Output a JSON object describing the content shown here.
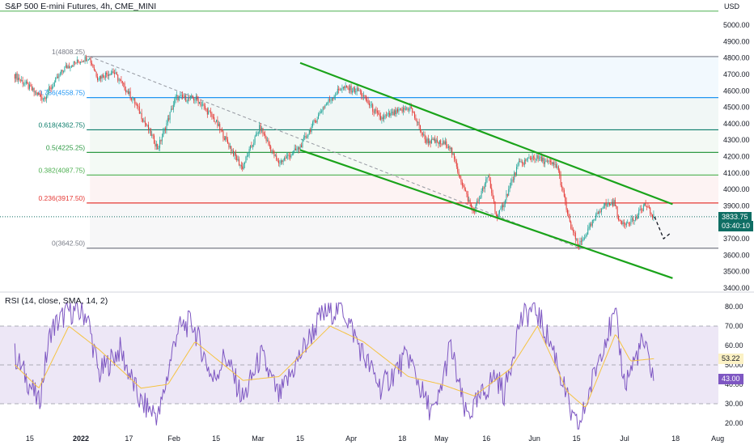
{
  "header": {
    "title": "S&P 500 E-mini Futures, 4h, CME_MINI",
    "currency": "USD"
  },
  "rsi_header": {
    "title": "RSI (14, close, SMA, 14, 2)"
  },
  "price_badge": {
    "price": "3833.75",
    "countdown": "03:40:10",
    "color": "#0f6e64"
  },
  "rsi_badges": {
    "sma": "53.22",
    "rsi": "43.00",
    "sma_color": "#fbf1c4",
    "rsi_color": "#7e57c2"
  },
  "colors": {
    "channel": "#1aa31a",
    "candle_up": "#26a69a",
    "candle_down": "#e53935",
    "rsi_line": "#7e57c2",
    "rsi_sma": "#f5c342",
    "rsi_band": "#ede7f6"
  },
  "chart_data": [
    {
      "type": "candlestick",
      "title": "S&P 500 E-mini Futures, 4h, CME_MINI",
      "ylabel": "USD",
      "ylim": [
        3400,
        5100
      ],
      "y_ticks": [
        3400,
        3500,
        3600,
        3700,
        3800,
        3900,
        4000,
        4100,
        4200,
        4300,
        4400,
        4500,
        4600,
        4700,
        4800,
        4900,
        5000
      ],
      "x_ticks": [
        "15",
        "2022",
        "17",
        "Feb",
        "15",
        "Mar",
        "15",
        "Apr",
        "18",
        "May",
        "16",
        "Jun",
        "15",
        "Jul",
        "18",
        "Aug"
      ],
      "path": [
        [
          "Dec 10",
          4700
        ],
        [
          "Dec 14",
          4640
        ],
        [
          "Dec 17",
          4590
        ],
        [
          "Dec 20",
          4555
        ],
        [
          "Dec 27",
          4740
        ],
        [
          "Jan 4",
          4808.25
        ],
        [
          "Jan 7",
          4680
        ],
        [
          "Jan 12",
          4720
        ],
        [
          "Jan 19",
          4540
        ],
        [
          "Jan 27",
          4250
        ],
        [
          "Feb 2",
          4560
        ],
        [
          "Feb 9",
          4550
        ],
        [
          "Feb 15",
          4420
        ],
        [
          "Feb 24",
          4130
        ],
        [
          "Mar 2",
          4380
        ],
        [
          "Mar 8",
          4160
        ],
        [
          "Mar 15",
          4250
        ],
        [
          "Mar 23",
          4500
        ],
        [
          "Mar 29",
          4620
        ],
        [
          "Apr 4",
          4600
        ],
        [
          "Apr 11",
          4430
        ],
        [
          "Apr 21",
          4500
        ],
        [
          "Apr 26",
          4300
        ],
        [
          "May 4",
          4270
        ],
        [
          "May 9",
          4000
        ],
        [
          "May 12",
          3860
        ],
        [
          "May 17",
          4080
        ],
        [
          "May 20",
          3820
        ],
        [
          "May 27",
          4150
        ],
        [
          "Jun 1",
          4200
        ],
        [
          "Jun 9",
          4140
        ],
        [
          "Jun 13",
          3800
        ],
        [
          "Jun 16",
          3650
        ],
        [
          "Jun 24",
          3900
        ],
        [
          "Jun 28",
          3920
        ],
        [
          "Jun 30",
          3790
        ],
        [
          "Jul 5",
          3820
        ],
        [
          "Jul 8",
          3910
        ],
        [
          "Jul 11",
          3833.75
        ]
      ],
      "fibonacci": [
        {
          "level": "1",
          "price": 4808.25,
          "label": "1(4808.25)",
          "color": "#787b86"
        },
        {
          "level": "0.786",
          "price": 4558.75,
          "label": "0.786(4558.75)",
          "color": "#2196f3"
        },
        {
          "level": "0.618",
          "price": 4362.75,
          "label": "0.618(4362.75)",
          "color": "#0c7d6b"
        },
        {
          "level": "0.5",
          "price": 4225.25,
          "label": "0.5(4225.25)",
          "color": "#2e9a44"
        },
        {
          "level": "0.382",
          "price": 4087.75,
          "label": "0.382(4087.75)",
          "color": "#4caf50"
        },
        {
          "level": "0.236",
          "price": 3917.5,
          "label": "0.236(3917.50)",
          "color": "#e53935"
        },
        {
          "level": "0",
          "price": 3642.5,
          "label": "0(3642.50)",
          "color": "#787b86"
        }
      ],
      "top_line": 5085,
      "last_price": 3833.75,
      "channel": {
        "upper": [
          [
            "Mar 15",
            4770
          ],
          [
            "Jul 17",
            3910
          ]
        ],
        "lower": [
          [
            "Mar 15",
            4240
          ],
          [
            "Jul 17",
            3460
          ]
        ]
      },
      "projection": [
        [
          "Jul 11",
          3833.75
        ],
        [
          "Jul 14",
          3700
        ],
        [
          "Jul 16",
          3730
        ]
      ],
      "trend_dashed": [
        [
          "Jan 4",
          4808.25
        ],
        [
          "Jun 16",
          3642.5
        ]
      ]
    },
    {
      "type": "line",
      "title": "RSI (14, close, SMA, 14, 2)",
      "ylim": [
        16,
        84
      ],
      "y_ticks": [
        20,
        30,
        40,
        50,
        60,
        70,
        80
      ],
      "bands": {
        "upper": 70,
        "middle": 50,
        "lower": 30
      },
      "rsi_path": [
        [
          "Dec 10",
          55
        ],
        [
          "Dec 15",
          40
        ],
        [
          "Dec 18",
          30
        ],
        [
          "Dec 22",
          68
        ],
        [
          "Dec 28",
          78
        ],
        [
          "Jan 3",
          76
        ],
        [
          "Jan 7",
          45
        ],
        [
          "Jan 14",
          58
        ],
        [
          "Jan 21",
          30
        ],
        [
          "Jan 27",
          24
        ],
        [
          "Feb 2",
          68
        ],
        [
          "Feb 7",
          72
        ],
        [
          "Feb 14",
          42
        ],
        [
          "Feb 18",
          55
        ],
        [
          "Feb 24",
          32
        ],
        [
          "Mar 2",
          55
        ],
        [
          "Mar 8",
          33
        ],
        [
          "Mar 16",
          58
        ],
        [
          "Mar 22",
          75
        ],
        [
          "Mar 29",
          80
        ],
        [
          "Apr 5",
          55
        ],
        [
          "Apr 11",
          38
        ],
        [
          "Apr 20",
          55
        ],
        [
          "Apr 26",
          30
        ],
        [
          "Apr 29",
          25
        ],
        [
          "May 4",
          60
        ],
        [
          "May 9",
          24
        ],
        [
          "May 12",
          28
        ],
        [
          "May 19",
          45
        ],
        [
          "May 22",
          35
        ],
        [
          "May 27",
          72
        ],
        [
          "Jun 1",
          80
        ],
        [
          "Jun 8",
          55
        ],
        [
          "Jun 14",
          20
        ],
        [
          "Jun 16",
          18
        ],
        [
          "Jun 24",
          62
        ],
        [
          "Jun 28",
          75
        ],
        [
          "Jul 1",
          40
        ],
        [
          "Jul 7",
          62
        ],
        [
          "Jul 11",
          43
        ]
      ],
      "sma_path": [
        [
          "Dec 10",
          50
        ],
        [
          "Dec 18",
          38
        ],
        [
          "Dec 28",
          70
        ],
        [
          "Jan 7",
          58
        ],
        [
          "Jan 21",
          38
        ],
        [
          "Jan 30",
          40
        ],
        [
          "Feb 8",
          62
        ],
        [
          "Feb 24",
          42
        ],
        [
          "Mar 8",
          44
        ],
        [
          "Mar 25",
          70
        ],
        [
          "Apr 5",
          62
        ],
        [
          "Apr 20",
          44
        ],
        [
          "May 1",
          40
        ],
        [
          "May 12",
          34
        ],
        [
          "May 24",
          48
        ],
        [
          "Jun 2",
          70
        ],
        [
          "Jun 12",
          36
        ],
        [
          "Jun 18",
          28
        ],
        [
          "Jun 28",
          66
        ],
        [
          "Jul 3",
          52
        ],
        [
          "Jul 11",
          53.22
        ]
      ],
      "rsi_last": 43.0,
      "sma_last": 53.22
    }
  ]
}
